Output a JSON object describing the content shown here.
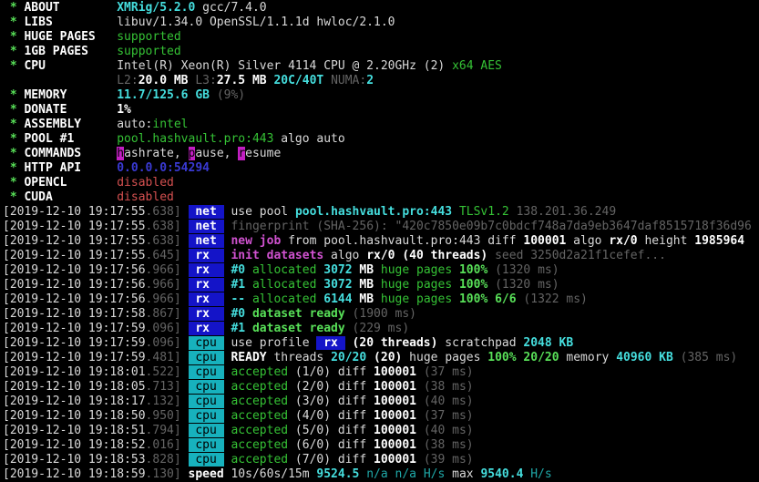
{
  "terminal": {
    "app": "xmrig-console",
    "palette": {
      "background": "#000000",
      "default_text": "#d9d9d9",
      "bold_text": "#ffffff",
      "dim_text": "#646464",
      "green": "#35c235",
      "bright_green": "#58e058",
      "cyan": "#45dede",
      "dim_cyan": "#1fa8a8",
      "magenta": "#d052d0",
      "red": "#d45050",
      "blue_link": "#3a3ad4",
      "net_badge_bg": "#1414c8",
      "cpu_badge_bg": "#17b1bd",
      "hotkey_bg": "#c21fc2"
    },
    "lines": [
      [
        {
          "c": "greenb",
          "t": " * ",
          "n": "bullet"
        },
        {
          "c": "wb",
          "t": "ABOUT        ",
          "n": "field-label"
        },
        {
          "c": "cyanb",
          "t": "XMRig/5.2.0"
        },
        {
          "c": "fg",
          "t": " gcc/7.4.0"
        }
      ],
      [
        {
          "c": "greenb",
          "t": " * ",
          "n": "bullet"
        },
        {
          "c": "wb",
          "t": "LIBS         ",
          "n": "field-label"
        },
        {
          "c": "fg",
          "t": "libuv/1.34.0 OpenSSL/1.1.1d hwloc/2.1.0"
        }
      ],
      [
        {
          "c": "greenb",
          "t": " * ",
          "n": "bullet"
        },
        {
          "c": "wb",
          "t": "HUGE PAGES   ",
          "n": "field-label"
        },
        {
          "c": "green",
          "t": "supported"
        }
      ],
      [
        {
          "c": "greenb",
          "t": " * ",
          "n": "bullet"
        },
        {
          "c": "wb",
          "t": "1GB PAGES    ",
          "n": "field-label"
        },
        {
          "c": "green",
          "t": "supported"
        }
      ],
      [
        {
          "c": "greenb",
          "t": " * ",
          "n": "bullet"
        },
        {
          "c": "wb",
          "t": "CPU          ",
          "n": "field-label"
        },
        {
          "c": "fg",
          "t": "Intel(R) Xeon(R) Silver 4114 CPU @ 2.20GHz (2) "
        },
        {
          "c": "green",
          "t": "x64 AES"
        }
      ],
      [
        {
          "c": "fg",
          "t": "                "
        },
        {
          "c": "gray",
          "t": "L2:"
        },
        {
          "c": "wb",
          "t": "20.0 MB "
        },
        {
          "c": "gray",
          "t": "L3:"
        },
        {
          "c": "wb",
          "t": "27.5 MB "
        },
        {
          "c": "cyanb",
          "t": "20C/40T "
        },
        {
          "c": "gray",
          "t": "NUMA:"
        },
        {
          "c": "cyanb",
          "t": "2"
        }
      ],
      [
        {
          "c": "greenb",
          "t": " * ",
          "n": "bullet"
        },
        {
          "c": "wb",
          "t": "MEMORY       ",
          "n": "field-label"
        },
        {
          "c": "cyanb",
          "t": "11.7/125.6 GB "
        },
        {
          "c": "gray",
          "t": "(9%)"
        }
      ],
      [
        {
          "c": "greenb",
          "t": " * ",
          "n": "bullet"
        },
        {
          "c": "wb",
          "t": "DONATE       ",
          "n": "field-label"
        },
        {
          "c": "wb",
          "t": "1%"
        }
      ],
      [
        {
          "c": "greenb",
          "t": " * ",
          "n": "bullet"
        },
        {
          "c": "wb",
          "t": "ASSEMBLY     ",
          "n": "field-label"
        },
        {
          "c": "fg",
          "t": "auto:"
        },
        {
          "c": "green",
          "t": "intel"
        }
      ],
      [
        {
          "c": "greenb",
          "t": " * ",
          "n": "bullet"
        },
        {
          "c": "wb",
          "t": "POOL #1      ",
          "n": "field-label"
        },
        {
          "c": "green",
          "t": "pool.hashvault.pro:443"
        },
        {
          "c": "fg",
          "t": " algo auto"
        }
      ],
      [
        {
          "c": "greenb",
          "t": " * ",
          "n": "bullet"
        },
        {
          "c": "wb",
          "t": "COMMANDS     ",
          "n": "field-label"
        },
        {
          "c": "hk",
          "t": "h",
          "n": "hotkey"
        },
        {
          "c": "fg",
          "t": "ashrate, "
        },
        {
          "c": "hk",
          "t": "p",
          "n": "hotkey"
        },
        {
          "c": "fg",
          "t": "ause, "
        },
        {
          "c": "hk",
          "t": "r",
          "n": "hotkey"
        },
        {
          "c": "fg",
          "t": "esume"
        }
      ],
      [
        {
          "c": "greenb",
          "t": " * ",
          "n": "bullet"
        },
        {
          "c": "wb",
          "t": "HTTP API     ",
          "n": "field-label"
        },
        {
          "c": "blue",
          "t": "0.0.0.0:54294"
        }
      ],
      [
        {
          "c": "greenb",
          "t": " * ",
          "n": "bullet"
        },
        {
          "c": "wb",
          "t": "OPENCL       ",
          "n": "field-label"
        },
        {
          "c": "red",
          "t": "disabled"
        }
      ],
      [
        {
          "c": "greenb",
          "t": " * ",
          "n": "bullet"
        },
        {
          "c": "wb",
          "t": "CUDA         ",
          "n": "field-label"
        },
        {
          "c": "red",
          "t": "disabled"
        }
      ],
      [
        {
          "c": "fg",
          "t": "[2019-12-10 19:17:55",
          "n": "timestamp"
        },
        {
          "c": "gray",
          "t": ".638]"
        },
        {
          "c": "fg",
          "t": " "
        },
        {
          "c": "bnet",
          "t": " net ",
          "n": "net-badge"
        },
        {
          "c": "fg",
          "t": " use pool "
        },
        {
          "c": "cyanb",
          "t": "pool.hashvault.pro:443 "
        },
        {
          "c": "green",
          "t": "TLSv1.2 "
        },
        {
          "c": "gray",
          "t": "138.201.36.249"
        }
      ],
      [
        {
          "c": "fg",
          "t": "[2019-12-10 19:17:55",
          "n": "timestamp"
        },
        {
          "c": "gray",
          "t": ".638]"
        },
        {
          "c": "fg",
          "t": " "
        },
        {
          "c": "bnet",
          "t": " net ",
          "n": "net-badge"
        },
        {
          "c": "gray",
          "t": " fingerprint (SHA-256): \"420c7850e09b7c0bdcf748a7da9eb3647daf8515718f36d96"
        }
      ],
      [
        {
          "c": "fg",
          "t": "[2019-12-10 19:17:55",
          "n": "timestamp"
        },
        {
          "c": "gray",
          "t": ".638]"
        },
        {
          "c": "fg",
          "t": " "
        },
        {
          "c": "bnet",
          "t": " net ",
          "n": "net-badge"
        },
        {
          "c": "fg",
          "t": " "
        },
        {
          "c": "mag",
          "t": "new job"
        },
        {
          "c": "fg",
          "t": " from pool.hashvault.pro:443 diff "
        },
        {
          "c": "wb",
          "t": "100001"
        },
        {
          "c": "fg",
          "t": " algo "
        },
        {
          "c": "wb",
          "t": "rx/0"
        },
        {
          "c": "fg",
          "t": " height "
        },
        {
          "c": "wb",
          "t": "1985964"
        }
      ],
      [
        {
          "c": "fg",
          "t": "[2019-12-10 19:17:55",
          "n": "timestamp"
        },
        {
          "c": "gray",
          "t": ".645]"
        },
        {
          "c": "fg",
          "t": " "
        },
        {
          "c": "bnet",
          "t": " rx  ",
          "n": "rx-badge"
        },
        {
          "c": "fg",
          "t": " "
        },
        {
          "c": "mag",
          "t": "init datasets"
        },
        {
          "c": "fg",
          "t": " algo "
        },
        {
          "c": "wb",
          "t": "rx/0 (40 threads)"
        },
        {
          "c": "gray",
          "t": " seed 3250d2a21f1cefef..."
        }
      ],
      [
        {
          "c": "fg",
          "t": "[2019-12-10 19:17:56",
          "n": "timestamp"
        },
        {
          "c": "gray",
          "t": ".966]"
        },
        {
          "c": "fg",
          "t": " "
        },
        {
          "c": "bnet",
          "t": " rx  ",
          "n": "rx-badge"
        },
        {
          "c": "fg",
          "t": " "
        },
        {
          "c": "cyanb",
          "t": "#0 "
        },
        {
          "c": "green",
          "t": "allocated "
        },
        {
          "c": "cyanb",
          "t": "3072 "
        },
        {
          "c": "wb",
          "t": "MB "
        },
        {
          "c": "green",
          "t": "huge pages "
        },
        {
          "c": "greenb",
          "t": "100%"
        },
        {
          "c": "gray",
          "t": " (1320 ms)"
        }
      ],
      [
        {
          "c": "fg",
          "t": "[2019-12-10 19:17:56",
          "n": "timestamp"
        },
        {
          "c": "gray",
          "t": ".966]"
        },
        {
          "c": "fg",
          "t": " "
        },
        {
          "c": "bnet",
          "t": " rx  ",
          "n": "rx-badge"
        },
        {
          "c": "fg",
          "t": " "
        },
        {
          "c": "cyanb",
          "t": "#1 "
        },
        {
          "c": "green",
          "t": "allocated "
        },
        {
          "c": "cyanb",
          "t": "3072 "
        },
        {
          "c": "wb",
          "t": "MB "
        },
        {
          "c": "green",
          "t": "huge pages "
        },
        {
          "c": "greenb",
          "t": "100%"
        },
        {
          "c": "gray",
          "t": " (1320 ms)"
        }
      ],
      [
        {
          "c": "fg",
          "t": "[2019-12-10 19:17:56",
          "n": "timestamp"
        },
        {
          "c": "gray",
          "t": ".966]"
        },
        {
          "c": "fg",
          "t": " "
        },
        {
          "c": "bnet",
          "t": " rx  ",
          "n": "rx-badge"
        },
        {
          "c": "fg",
          "t": " "
        },
        {
          "c": "cyanb",
          "t": "-- "
        },
        {
          "c": "green",
          "t": "allocated "
        },
        {
          "c": "cyanb",
          "t": "6144 "
        },
        {
          "c": "wb",
          "t": "MB "
        },
        {
          "c": "green",
          "t": "huge pages "
        },
        {
          "c": "greenb",
          "t": "100% 6/6"
        },
        {
          "c": "gray",
          "t": " (1322 ms)"
        }
      ],
      [
        {
          "c": "fg",
          "t": "[2019-12-10 19:17:58",
          "n": "timestamp"
        },
        {
          "c": "gray",
          "t": ".867]"
        },
        {
          "c": "fg",
          "t": " "
        },
        {
          "c": "bnet",
          "t": " rx  ",
          "n": "rx-badge"
        },
        {
          "c": "fg",
          "t": " "
        },
        {
          "c": "cyanb",
          "t": "#0 "
        },
        {
          "c": "greenb",
          "t": "dataset ready"
        },
        {
          "c": "gray",
          "t": " (1900 ms)"
        }
      ],
      [
        {
          "c": "fg",
          "t": "[2019-12-10 19:17:59",
          "n": "timestamp"
        },
        {
          "c": "gray",
          "t": ".096]"
        },
        {
          "c": "fg",
          "t": " "
        },
        {
          "c": "bnet",
          "t": " rx  ",
          "n": "rx-badge"
        },
        {
          "c": "fg",
          "t": " "
        },
        {
          "c": "cyanb",
          "t": "#1 "
        },
        {
          "c": "greenb",
          "t": "dataset ready"
        },
        {
          "c": "gray",
          "t": " (229 ms)"
        }
      ],
      [
        {
          "c": "fg",
          "t": "[2019-12-10 19:17:59",
          "n": "timestamp"
        },
        {
          "c": "gray",
          "t": ".096]"
        },
        {
          "c": "fg",
          "t": " "
        },
        {
          "c": "bcpu",
          "t": " cpu ",
          "n": "cpu-badge"
        },
        {
          "c": "fg",
          "t": " use profile "
        },
        {
          "c": "bnet",
          "t": " rx ",
          "n": "rx-inline-badge"
        },
        {
          "c": "wb",
          "t": " (20 threads)"
        },
        {
          "c": "fg",
          "t": " scratchpad "
        },
        {
          "c": "cyanb",
          "t": "2048 KB"
        }
      ],
      [
        {
          "c": "fg",
          "t": "[2019-12-10 19:17:59",
          "n": "timestamp"
        },
        {
          "c": "gray",
          "t": ".481]"
        },
        {
          "c": "fg",
          "t": " "
        },
        {
          "c": "bcpu",
          "t": " cpu ",
          "n": "cpu-badge"
        },
        {
          "c": "fg",
          "t": " "
        },
        {
          "c": "wb",
          "t": "READY"
        },
        {
          "c": "fg",
          "t": " threads "
        },
        {
          "c": "cyanb",
          "t": "20/20"
        },
        {
          "c": "wb",
          "t": " (20)"
        },
        {
          "c": "fg",
          "t": " huge pages "
        },
        {
          "c": "greenb",
          "t": "100% 20/20"
        },
        {
          "c": "fg",
          "t": " memory "
        },
        {
          "c": "cyanb",
          "t": "40960 KB"
        },
        {
          "c": "gray",
          "t": " (385 ms)"
        }
      ],
      [
        {
          "c": "fg",
          "t": "[2019-12-10 19:18:01",
          "n": "timestamp"
        },
        {
          "c": "gray",
          "t": ".522]"
        },
        {
          "c": "fg",
          "t": " "
        },
        {
          "c": "bcpu",
          "t": " cpu ",
          "n": "cpu-badge"
        },
        {
          "c": "fg",
          "t": " "
        },
        {
          "c": "green",
          "t": "accepted"
        },
        {
          "c": "fg",
          "t": " (1/0) diff "
        },
        {
          "c": "wb",
          "t": "100001"
        },
        {
          "c": "gray",
          "t": " (37 ms)"
        }
      ],
      [
        {
          "c": "fg",
          "t": "[2019-12-10 19:18:05",
          "n": "timestamp"
        },
        {
          "c": "gray",
          "t": ".713]"
        },
        {
          "c": "fg",
          "t": " "
        },
        {
          "c": "bcpu",
          "t": " cpu ",
          "n": "cpu-badge"
        },
        {
          "c": "fg",
          "t": " "
        },
        {
          "c": "green",
          "t": "accepted"
        },
        {
          "c": "fg",
          "t": " (2/0) diff "
        },
        {
          "c": "wb",
          "t": "100001"
        },
        {
          "c": "gray",
          "t": " (38 ms)"
        }
      ],
      [
        {
          "c": "fg",
          "t": "[2019-12-10 19:18:17",
          "n": "timestamp"
        },
        {
          "c": "gray",
          "t": ".132]"
        },
        {
          "c": "fg",
          "t": " "
        },
        {
          "c": "bcpu",
          "t": " cpu ",
          "n": "cpu-badge"
        },
        {
          "c": "fg",
          "t": " "
        },
        {
          "c": "green",
          "t": "accepted"
        },
        {
          "c": "fg",
          "t": " (3/0) diff "
        },
        {
          "c": "wb",
          "t": "100001"
        },
        {
          "c": "gray",
          "t": " (40 ms)"
        }
      ],
      [
        {
          "c": "fg",
          "t": "[2019-12-10 19:18:50",
          "n": "timestamp"
        },
        {
          "c": "gray",
          "t": ".950]"
        },
        {
          "c": "fg",
          "t": " "
        },
        {
          "c": "bcpu",
          "t": " cpu ",
          "n": "cpu-badge"
        },
        {
          "c": "fg",
          "t": " "
        },
        {
          "c": "green",
          "t": "accepted"
        },
        {
          "c": "fg",
          "t": " (4/0) diff "
        },
        {
          "c": "wb",
          "t": "100001"
        },
        {
          "c": "gray",
          "t": " (37 ms)"
        }
      ],
      [
        {
          "c": "fg",
          "t": "[2019-12-10 19:18:51",
          "n": "timestamp"
        },
        {
          "c": "gray",
          "t": ".794]"
        },
        {
          "c": "fg",
          "t": " "
        },
        {
          "c": "bcpu",
          "t": " cpu ",
          "n": "cpu-badge"
        },
        {
          "c": "fg",
          "t": " "
        },
        {
          "c": "green",
          "t": "accepted"
        },
        {
          "c": "fg",
          "t": " (5/0) diff "
        },
        {
          "c": "wb",
          "t": "100001"
        },
        {
          "c": "gray",
          "t": " (40 ms)"
        }
      ],
      [
        {
          "c": "fg",
          "t": "[2019-12-10 19:18:52",
          "n": "timestamp"
        },
        {
          "c": "gray",
          "t": ".016]"
        },
        {
          "c": "fg",
          "t": " "
        },
        {
          "c": "bcpu",
          "t": " cpu ",
          "n": "cpu-badge"
        },
        {
          "c": "fg",
          "t": " "
        },
        {
          "c": "green",
          "t": "accepted"
        },
        {
          "c": "fg",
          "t": " (6/0) diff "
        },
        {
          "c": "wb",
          "t": "100001"
        },
        {
          "c": "gray",
          "t": " (38 ms)"
        }
      ],
      [
        {
          "c": "fg",
          "t": "[2019-12-10 19:18:53",
          "n": "timestamp"
        },
        {
          "c": "gray",
          "t": ".828]"
        },
        {
          "c": "fg",
          "t": " "
        },
        {
          "c": "bcpu",
          "t": " cpu ",
          "n": "cpu-badge"
        },
        {
          "c": "fg",
          "t": " "
        },
        {
          "c": "green",
          "t": "accepted"
        },
        {
          "c": "fg",
          "t": " (7/0) diff "
        },
        {
          "c": "wb",
          "t": "100001"
        },
        {
          "c": "gray",
          "t": " (39 ms)"
        }
      ],
      [
        {
          "c": "fg",
          "t": "[2019-12-10 19:18:59",
          "n": "timestamp"
        },
        {
          "c": "gray",
          "t": ".130]"
        },
        {
          "c": "fg",
          "t": " "
        },
        {
          "c": "wb",
          "t": "speed",
          "n": "speed-tag"
        },
        {
          "c": "fg",
          "t": " 10s/60s/15m "
        },
        {
          "c": "cyanb",
          "t": "9524.5 "
        },
        {
          "c": "cyand",
          "t": "n/a n/a H/s"
        },
        {
          "c": "fg",
          "t": " max "
        },
        {
          "c": "cyanb",
          "t": "9540.4 "
        },
        {
          "c": "cyand",
          "t": "H/s"
        }
      ]
    ]
  }
}
